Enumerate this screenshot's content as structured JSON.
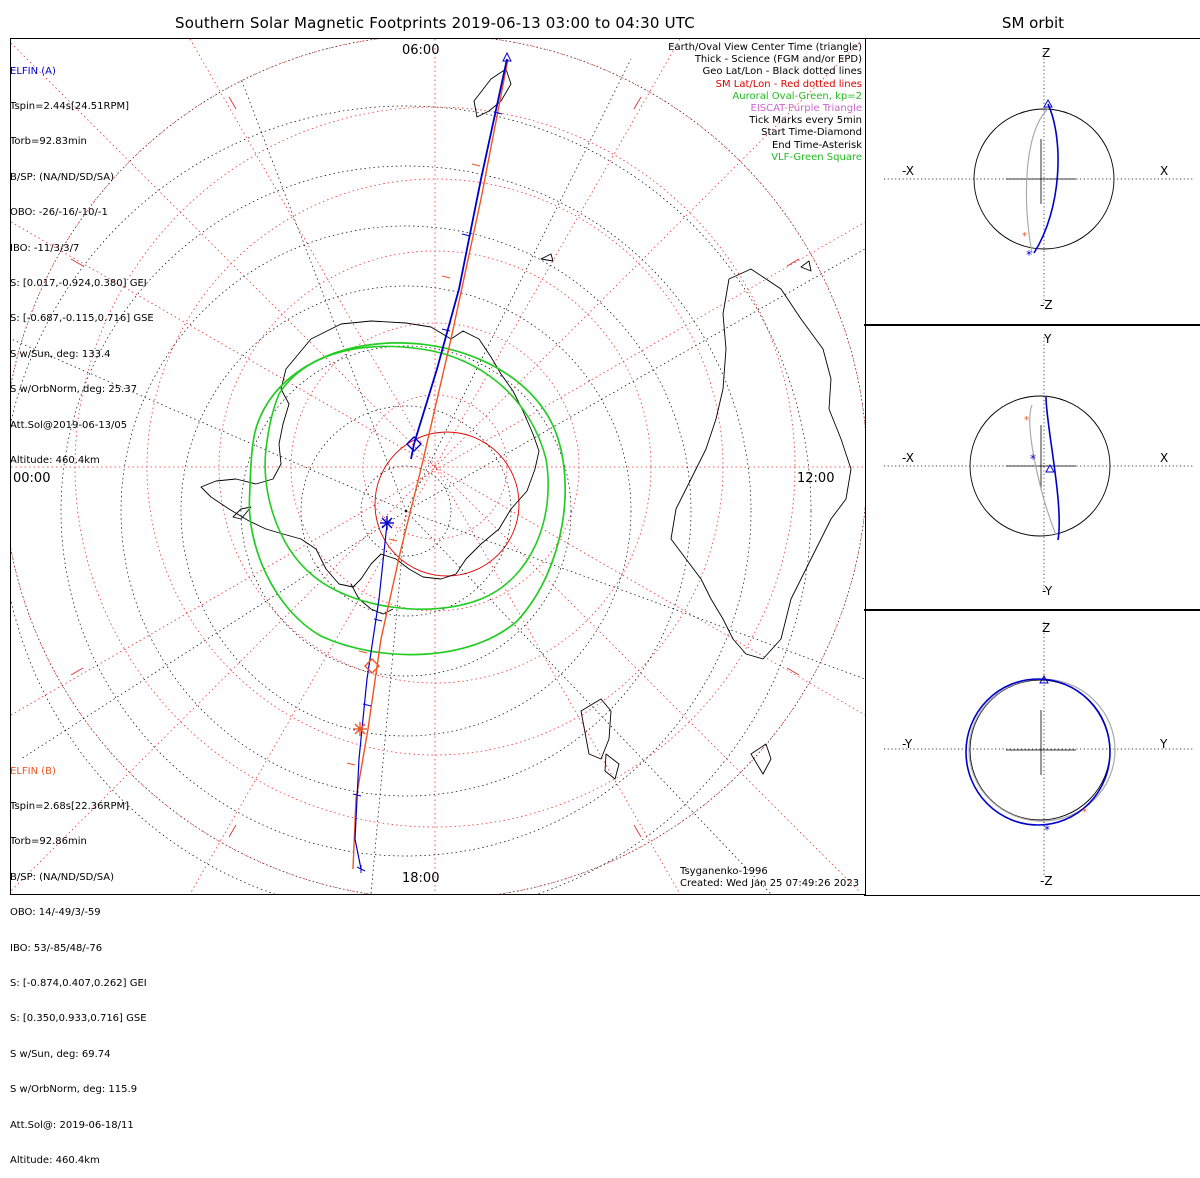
{
  "title": "Southern Solar Magnetic Footprints 2019-06-13 03:00 to 04:30 UTC",
  "orbit_title": "SM orbit",
  "local_time_labels": {
    "top": "06:00",
    "left": "00:00",
    "right": "12:00",
    "bottom": "18:00"
  },
  "spacecraft_a": {
    "name": "ELFIN (A)",
    "color": "#0000cc",
    "lines": [
      "Tspin=2.44s[24.51RPM]",
      "Torb=92.83min",
      "B/SP: (NA/ND/SD/SA)",
      "OBO: -26/-16/-10/-1",
      "IBO: -11/3/3/7",
      "S: [0.017,-0.924,0.380] GEI",
      "S: [-0.687,-0.115,0.716] GSE",
      "S w/Sun, deg: 133.4",
      "S w/OrbNorm, deg: 25.37",
      "Att.Sol@2019-06-13/05",
      "Altitude: 460.4km"
    ]
  },
  "spacecraft_b": {
    "name": "ELFIN (B)",
    "color": "#ee5522",
    "lines": [
      "Tspin=2.68s[22.36RPM]",
      "Torb=92.86min",
      "B/SP: (NA/ND/SD/SA)",
      "OBO: 14/-49/3/-59",
      "IBO: 53/-85/48/-76",
      "S: [-0.874,0.407,0.262] GEI",
      "S: [0.350,0.933,0.716] GSE",
      "S w/Sun, deg: 69.74",
      "S w/OrbNorm, deg: 115.9",
      "Att.Sol@: 2019-06-18/11",
      "Altitude: 460.4km"
    ]
  },
  "legend": [
    {
      "text": "Earth/Oval View Center Time (triangle)",
      "color": "#000000"
    },
    {
      "text": "Thick - Science (FGM and/or EPD)",
      "color": "#000000"
    },
    {
      "text": "Geo Lat/Lon - Black dotted lines",
      "color": "#000000"
    },
    {
      "text": "SM Lat/Lon - Red dotted lines",
      "color": "#dd0000"
    },
    {
      "text": "Auroral Oval-Green, kp=2",
      "color": "#22bb22"
    },
    {
      "text": "EISCAT-Purple Triangle",
      "color": "#cc66cc"
    },
    {
      "text": "Tick Marks every 5min",
      "color": "#000000"
    },
    {
      "text": "Start Time-Diamond",
      "color": "#000000"
    },
    {
      "text": "End Time-Asterisk",
      "color": "#000000"
    },
    {
      "text": "VLF-Green Square",
      "color": "#22bb22"
    }
  ],
  "credits": {
    "model": "Tsyganenko-1996",
    "created": "Created: Wed Jan 25 07:49:26 2023"
  },
  "orbit_panels": [
    {
      "top": "Z",
      "bottom": "-Z",
      "left": "-X",
      "right": "X"
    },
    {
      "top": "Y",
      "bottom": "-Y",
      "left": "-X",
      "right": "X"
    },
    {
      "top": "Z",
      "bottom": "-Z",
      "left": "-Y",
      "right": "Y"
    }
  ]
}
